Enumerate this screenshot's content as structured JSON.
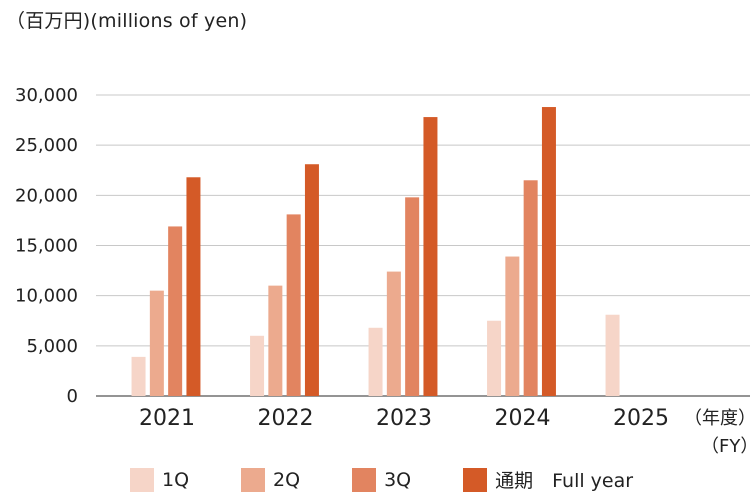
{
  "header": {
    "unit": "（百万円)(millions of yen)"
  },
  "x_unit": {
    "line1": "（年度）",
    "line2": "（FY）"
  },
  "chart_data": {
    "type": "bar",
    "categories": [
      "2021",
      "2022",
      "2023",
      "2024",
      "2025"
    ],
    "series": [
      {
        "name": "1Q",
        "color": "#f6d5c8",
        "values": [
          3900,
          6000,
          6800,
          7500,
          8100
        ]
      },
      {
        "name": "2Q",
        "color": "#ecaa8e",
        "values": [
          10500,
          11000,
          12400,
          13900,
          null
        ]
      },
      {
        "name": "3Q",
        "color": "#e28460",
        "values": [
          16900,
          18100,
          19800,
          21500,
          null
        ]
      },
      {
        "name": "通期　Full year",
        "color": "#d45a27",
        "values": [
          21800,
          23100,
          27800,
          28800,
          null
        ]
      }
    ],
    "yticks": [
      "0",
      "5,000",
      "10,000",
      "15,000",
      "20,000",
      "25,000",
      "30,000"
    ],
    "ylim": [
      0,
      30000
    ],
    "grid": true,
    "legend_position": "bottom"
  }
}
